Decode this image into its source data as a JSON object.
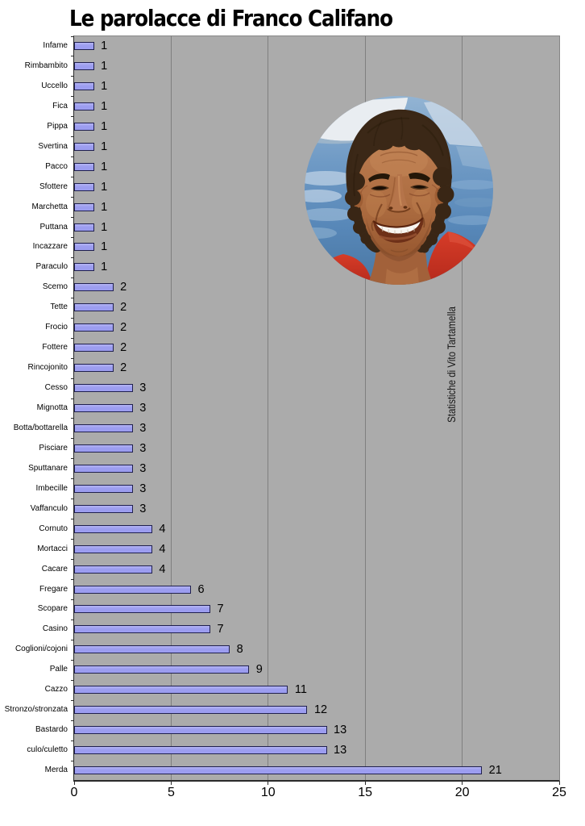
{
  "title": "Le parolacce di Franco Califano",
  "annotation": "Statistiche di Vito Tartamella",
  "photo": {
    "subject": "Franco Califano smiling portrait, red shirt, sea background"
  },
  "colors": {
    "plot_background": "#ababab",
    "gridline": "#7f7f7f",
    "axis": "#2b2b2b",
    "bar_fill": "#9c9df0",
    "bar_fill_light": "#b3b4f4",
    "bar_border": "#20204e",
    "page_background": "#ffffff",
    "shirt_red": "#cc3526",
    "sea_blue": "#5d88bd"
  },
  "chart_data": {
    "type": "bar",
    "orientation": "horizontal",
    "title": "Le parolacce di Franco Califano",
    "xlabel": "",
    "ylabel": "",
    "xlim": [
      0,
      25
    ],
    "xticks": [
      0,
      5,
      10,
      15,
      20,
      25
    ],
    "grid": "vertical major gridlines",
    "legend": "none",
    "categories": [
      "Infame",
      "Rimbambito",
      "Uccello",
      "Fica",
      "Pippa",
      "Svertina",
      "Pacco",
      "Sfottere",
      "Marchetta",
      "Puttana",
      "Incazzare",
      "Paraculo",
      "Scemo",
      "Tette",
      "Frocio",
      "Fottere",
      "Rincojonito",
      "Cesso",
      "Mignotta",
      "Botta/bottarella",
      "Pisciare",
      "Sputtanare",
      "Imbecille",
      "Vaffanculo",
      "Cornuto",
      "Mortacci",
      "Cacare",
      "Fregare",
      "Scopare",
      "Casino",
      "Coglioni/cojoni",
      "Palle",
      "Cazzo",
      "Stronzo/stronzata",
      "Bastardo",
      "culo/culetto",
      "Merda"
    ],
    "values": [
      1,
      1,
      1,
      1,
      1,
      1,
      1,
      1,
      1,
      1,
      1,
      1,
      2,
      2,
      2,
      2,
      2,
      3,
      3,
      3,
      3,
      3,
      3,
      3,
      4,
      4,
      4,
      6,
      7,
      7,
      8,
      9,
      11,
      12,
      13,
      13,
      21
    ]
  }
}
